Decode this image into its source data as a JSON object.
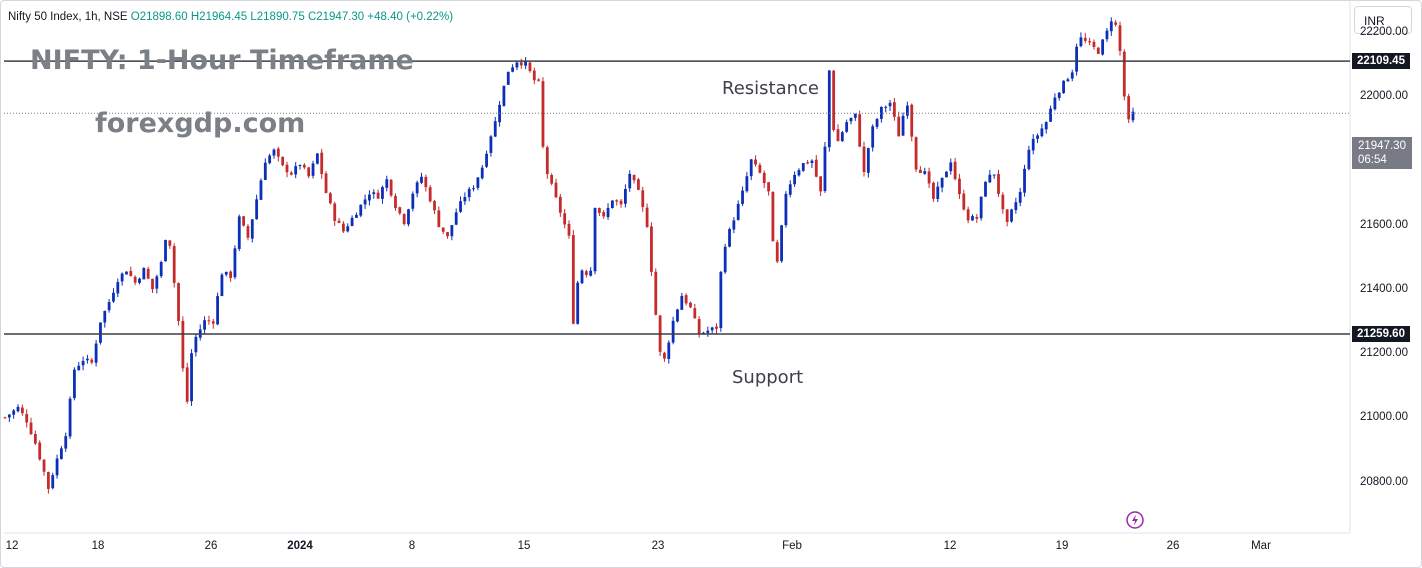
{
  "header": {
    "symbol": "Nifty 50 Index, 1h, NSE",
    "open": "O21898.60",
    "high": "H21964.45",
    "low": "L21890.75",
    "close": "C21947.30",
    "change": "+48.40 (+0.22%)"
  },
  "currency_button": "INR",
  "colors": {
    "up": "#0b2fb8",
    "down": "#c62b2b",
    "text_gray": "#7b7f86",
    "price_label_bg": "#131722",
    "last_label_bg": "#787b86"
  },
  "icons": {
    "alert": "lightning-bolt-icon"
  },
  "chart_data": {
    "type": "candlestick",
    "title": "NIFTY: 1-Hour Timeframe",
    "watermark": "forexgdp.com",
    "ylim": [
      20640,
      22300
    ],
    "y_ticks": [
      "22200.00",
      "22000.00",
      "21800.00",
      "21600.00",
      "21400.00",
      "21200.00",
      "21000.00",
      "20800.00"
    ],
    "y_tick_values": [
      22200,
      22000,
      21800,
      21600,
      21400,
      21200,
      21000,
      20800
    ],
    "x_ticks": [
      {
        "label": "12",
        "year": false
      },
      {
        "label": "18",
        "year": false
      },
      {
        "label": "26",
        "year": false
      },
      {
        "label": "2024",
        "year": true
      },
      {
        "label": "8",
        "year": false
      },
      {
        "label": "15",
        "year": false
      },
      {
        "label": "23",
        "year": false
      },
      {
        "label": "Feb",
        "year": false
      },
      {
        "label": "12",
        "year": false
      },
      {
        "label": "19",
        "year": false
      },
      {
        "label": "26",
        "year": false
      },
      {
        "label": "Mar",
        "year": false
      }
    ],
    "levels": [
      {
        "name": "Resistance",
        "price": 22109.45,
        "label": "22109.45"
      },
      {
        "name": "Support",
        "price": 21259.6,
        "label": "21259.60"
      }
    ],
    "last_price": {
      "price": 21947.3,
      "label": "21947.30",
      "countdown": "06:54"
    },
    "path_points": [
      [
        0,
        21000
      ],
      [
        3,
        21030
      ],
      [
        5,
        20990
      ],
      [
        7,
        20920
      ],
      [
        9,
        20830
      ],
      [
        10,
        20780
      ],
      [
        12,
        20870
      ],
      [
        14,
        20950
      ],
      [
        16,
        21150
      ],
      [
        18,
        21180
      ],
      [
        20,
        21170
      ],
      [
        22,
        21300
      ],
      [
        24,
        21360
      ],
      [
        26,
        21430
      ],
      [
        28,
        21460
      ],
      [
        30,
        21420
      ],
      [
        32,
        21460
      ],
      [
        34,
        21400
      ],
      [
        36,
        21480
      ],
      [
        37,
        21560
      ],
      [
        38,
        21540
      ],
      [
        39,
        21420
      ],
      [
        40,
        21300
      ],
      [
        41,
        21150
      ],
      [
        42,
        21050
      ],
      [
        43,
        21200
      ],
      [
        44,
        21250
      ],
      [
        46,
        21300
      ],
      [
        48,
        21300
      ],
      [
        50,
        21450
      ],
      [
        52,
        21440
      ],
      [
        54,
        21620
      ],
      [
        56,
        21560
      ],
      [
        58,
        21680
      ],
      [
        60,
        21800
      ],
      [
        62,
        21830
      ],
      [
        64,
        21780
      ],
      [
        66,
        21760
      ],
      [
        68,
        21790
      ],
      [
        70,
        21750
      ],
      [
        72,
        21820
      ],
      [
        74,
        21700
      ],
      [
        76,
        21620
      ],
      [
        78,
        21580
      ],
      [
        80,
        21620
      ],
      [
        82,
        21660
      ],
      [
        84,
        21700
      ],
      [
        86,
        21690
      ],
      [
        88,
        21740
      ],
      [
        90,
        21660
      ],
      [
        92,
        21610
      ],
      [
        94,
        21700
      ],
      [
        96,
        21750
      ],
      [
        98,
        21680
      ],
      [
        100,
        21600
      ],
      [
        102,
        21560
      ],
      [
        104,
        21640
      ],
      [
        106,
        21690
      ],
      [
        108,
        21720
      ],
      [
        110,
        21780
      ],
      [
        112,
        21880
      ],
      [
        113,
        21920
      ],
      [
        114,
        21980
      ],
      [
        116,
        22080
      ],
      [
        118,
        22110
      ],
      [
        120,
        22100
      ],
      [
        122,
        22050
      ],
      [
        123,
        22040
      ],
      [
        124,
        21840
      ],
      [
        125,
        21760
      ],
      [
        126,
        21720
      ],
      [
        128,
        21640
      ],
      [
        130,
        21560
      ],
      [
        131,
        21300
      ],
      [
        132,
        21420
      ],
      [
        133,
        21460
      ],
      [
        134,
        21450
      ],
      [
        135,
        21460
      ],
      [
        136,
        21660
      ],
      [
        138,
        21620
      ],
      [
        140,
        21680
      ],
      [
        142,
        21660
      ],
      [
        144,
        21760
      ],
      [
        146,
        21700
      ],
      [
        148,
        21600
      ],
      [
        149,
        21460
      ],
      [
        150,
        21320
      ],
      [
        151,
        21200
      ],
      [
        152,
        21180
      ],
      [
        154,
        21300
      ],
      [
        156,
        21380
      ],
      [
        158,
        21340
      ],
      [
        160,
        21260
      ],
      [
        162,
        21270
      ],
      [
        164,
        21280
      ],
      [
        165,
        21450
      ],
      [
        166,
        21540
      ],
      [
        168,
        21620
      ],
      [
        170,
        21700
      ],
      [
        172,
        21800
      ],
      [
        174,
        21760
      ],
      [
        176,
        21700
      ],
      [
        177,
        21540
      ],
      [
        178,
        21480
      ],
      [
        180,
        21700
      ],
      [
        182,
        21760
      ],
      [
        184,
        21790
      ],
      [
        186,
        21800
      ],
      [
        188,
        21700
      ],
      [
        189,
        21840
      ],
      [
        190,
        22080
      ],
      [
        191,
        21900
      ],
      [
        192,
        21860
      ],
      [
        194,
        21920
      ],
      [
        196,
        21940
      ],
      [
        198,
        21760
      ],
      [
        199,
        21840
      ],
      [
        200,
        21900
      ],
      [
        202,
        21960
      ],
      [
        204,
        21980
      ],
      [
        206,
        21880
      ],
      [
        207,
        21940
      ],
      [
        208,
        21980
      ],
      [
        209,
        21880
      ],
      [
        210,
        21780
      ],
      [
        212,
        21760
      ],
      [
        214,
        21680
      ],
      [
        216,
        21740
      ],
      [
        218,
        21800
      ],
      [
        220,
        21690
      ],
      [
        222,
        21620
      ],
      [
        224,
        21620
      ],
      [
        226,
        21740
      ],
      [
        228,
        21760
      ],
      [
        230,
        21640
      ],
      [
        231,
        21600
      ],
      [
        232,
        21640
      ],
      [
        234,
        21700
      ],
      [
        236,
        21840
      ],
      [
        238,
        21880
      ],
      [
        240,
        21920
      ],
      [
        242,
        22000
      ],
      [
        244,
        22040
      ],
      [
        246,
        22080
      ],
      [
        247,
        22160
      ],
      [
        248,
        22180
      ],
      [
        250,
        22160
      ],
      [
        252,
        22140
      ],
      [
        254,
        22200
      ],
      [
        255,
        22240
      ],
      [
        256,
        22220
      ],
      [
        257,
        22140
      ],
      [
        258,
        22000
      ],
      [
        259,
        21920
      ],
      [
        260,
        21947
      ]
    ],
    "n_bars": 261,
    "first_bar_x": 5,
    "last_bar_x": 1133
  }
}
